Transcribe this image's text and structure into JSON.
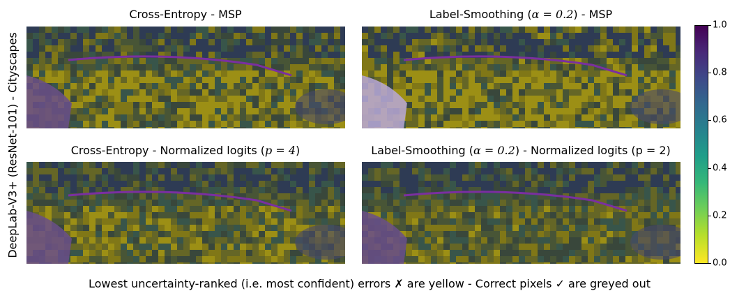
{
  "figure": {
    "ylabel": "DeepLab-V3+ (ResNet-101) - Cityscapes",
    "caption": "Lowest uncertainty-ranked (i.e. most confident) errors ✗ are yellow - Correct pixels ✓ are greyed out"
  },
  "panels": [
    {
      "title_pre": "Cross-Entropy - MSP",
      "title_math": "",
      "title_post": "",
      "yellow_level": 0.55
    },
    {
      "title_pre": "Label-Smoothing (",
      "title_math": "α = 0.2",
      "title_post": ") - MSP",
      "yellow_level": 0.65
    },
    {
      "title_pre": "Cross-Entropy - Normalized logits (",
      "title_math": "p = 4",
      "title_post": ")",
      "yellow_level": 0.45
    },
    {
      "title_pre": "Label-Smoothing (",
      "title_math": "α = 0.2",
      "title_post": ") - Normalized logits (p = 2)",
      "yellow_level": 0.4
    }
  ],
  "colorbar": {
    "colormap": "viridis (reversed)",
    "ticks": [
      "1.0",
      "0.8",
      "0.6",
      "0.4",
      "0.2",
      "0.0"
    ],
    "range": [
      0.0,
      1.0
    ]
  }
}
